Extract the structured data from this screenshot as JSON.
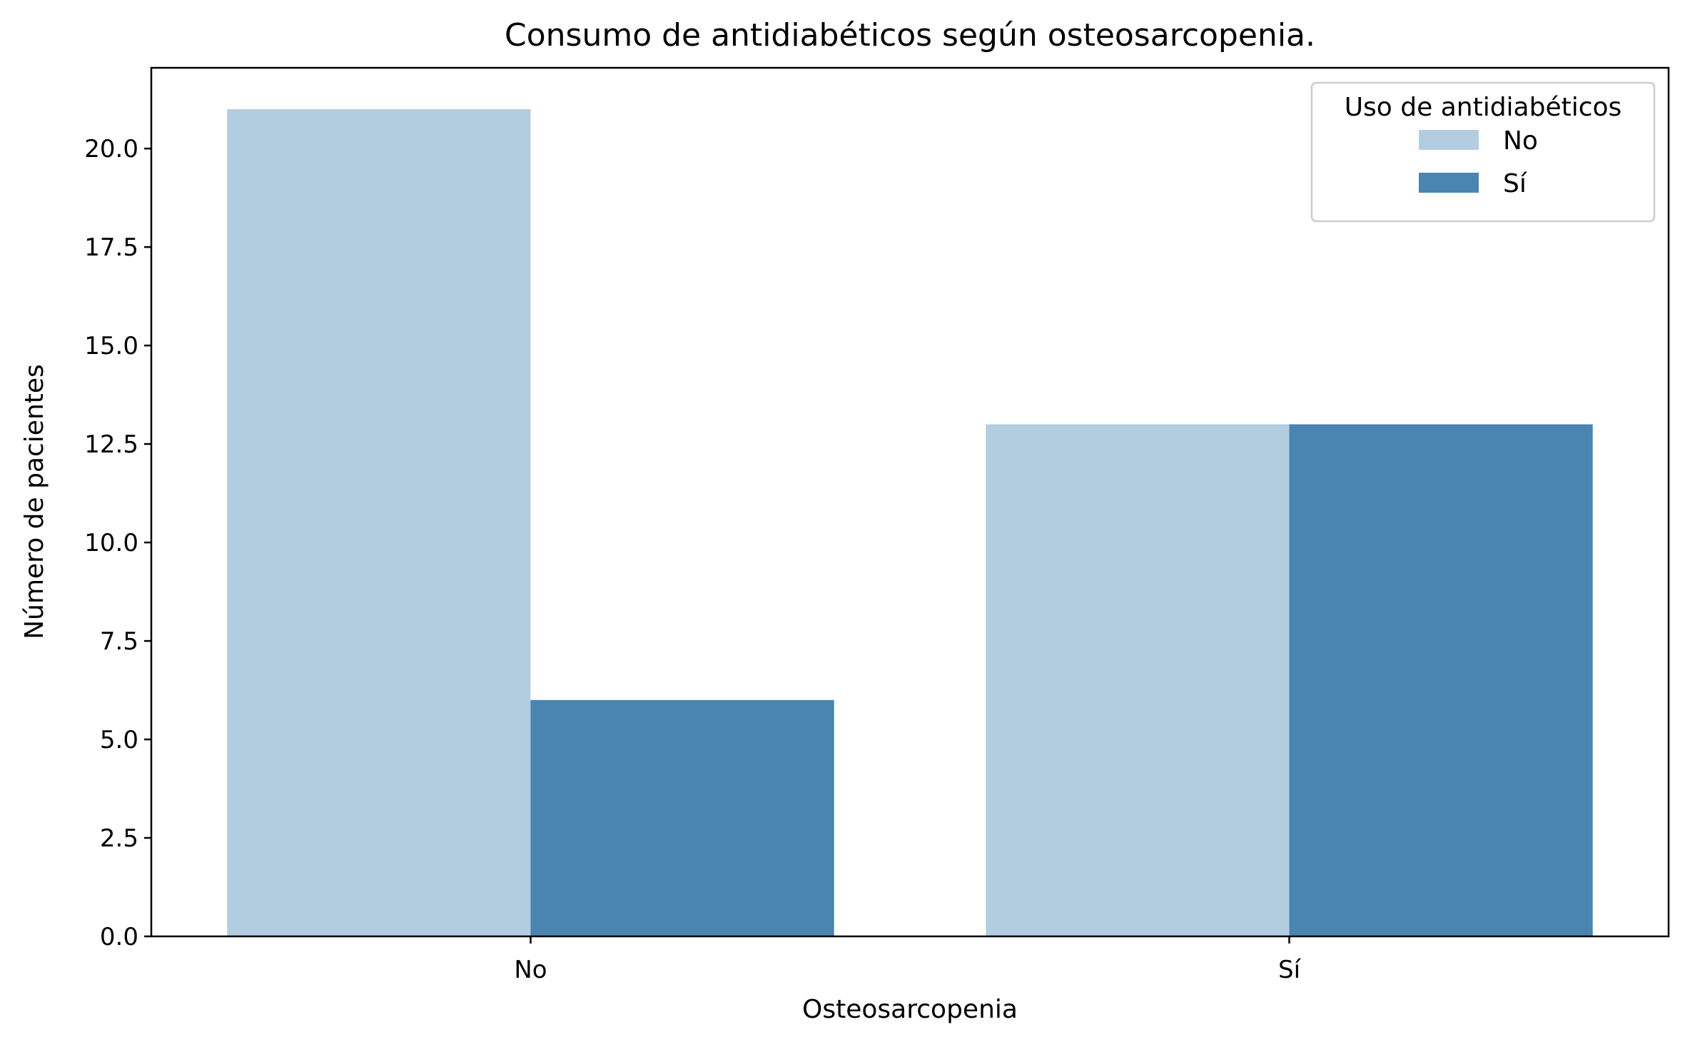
{
  "chart_data": {
    "type": "bar",
    "title": "Consumo de antidiabéticos según osteosarcopenia.",
    "xlabel": "Osteosarcopenia",
    "ylabel": "Número de pacientes",
    "categories": [
      "No",
      "Sí"
    ],
    "series": [
      {
        "name": "No",
        "values": [
          21,
          13
        ],
        "color": "#b3cde0"
      },
      {
        "name": "Sí",
        "values": [
          6,
          13
        ],
        "color": "#4a84b0"
      }
    ],
    "ylim": [
      0,
      22.05
    ],
    "yticks": [
      "0.0",
      "2.5",
      "5.0",
      "7.5",
      "10.0",
      "12.5",
      "15.0",
      "17.5",
      "20.0"
    ],
    "grid": false,
    "legend": {
      "title": "Uso de antidiabéticos",
      "placement": "top-right"
    }
  }
}
